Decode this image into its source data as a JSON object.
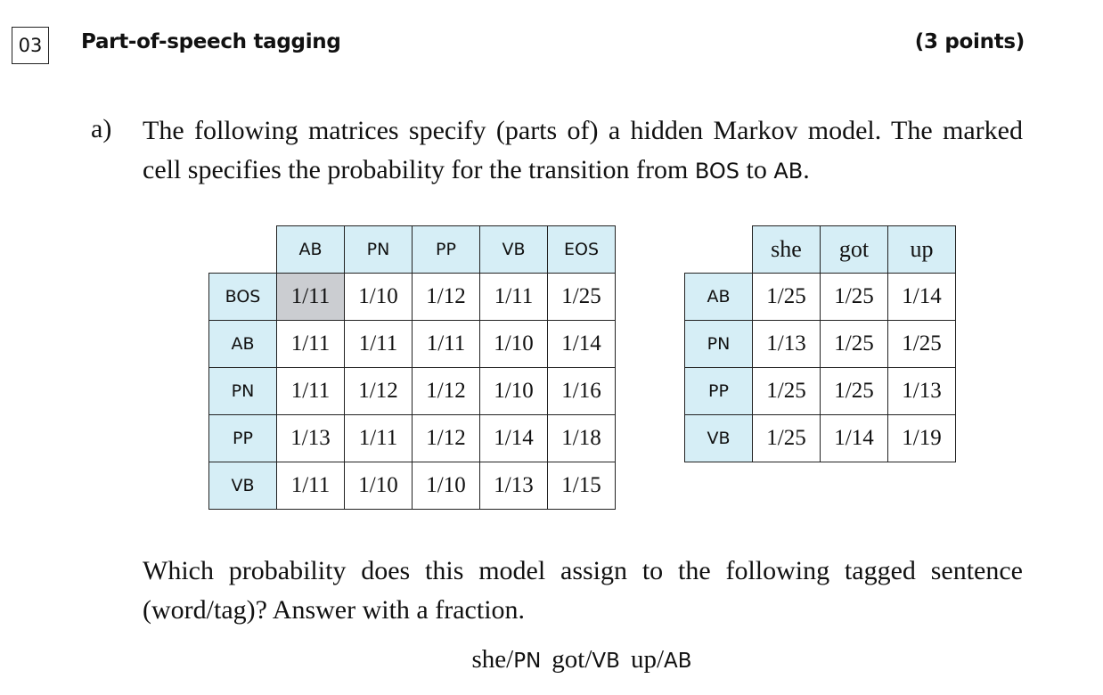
{
  "header": {
    "number": "03",
    "title": "Part-of-speech tagging",
    "points": "(3 points)"
  },
  "part_a": {
    "marker": "a)",
    "intro_1": "The following matrices specify (parts of) a hidden Markov model. The marked cell specifies the probability for the transition from ",
    "intro_code_1": "BOS",
    "intro_2": " to ",
    "intro_code_2": "AB",
    "intro_3": ".",
    "question": "Which probability does this model assign to the following tagged sentence (word/tag)? Answer with a fraction.",
    "sentence": [
      {
        "word": "she",
        "tag": "PN"
      },
      {
        "word": "got",
        "tag": "VB"
      },
      {
        "word": "up",
        "tag": "AB"
      }
    ]
  },
  "transition_matrix": {
    "columns": [
      "AB",
      "PN",
      "PP",
      "VB",
      "EOS"
    ],
    "rows": [
      {
        "label": "BOS",
        "values": [
          "1/11",
          "1/10",
          "1/12",
          "1/11",
          "1/25"
        ]
      },
      {
        "label": "AB",
        "values": [
          "1/11",
          "1/11",
          "1/11",
          "1/10",
          "1/14"
        ]
      },
      {
        "label": "PN",
        "values": [
          "1/11",
          "1/12",
          "1/12",
          "1/10",
          "1/16"
        ]
      },
      {
        "label": "PP",
        "values": [
          "1/13",
          "1/11",
          "1/12",
          "1/14",
          "1/18"
        ]
      },
      {
        "label": "VB",
        "values": [
          "1/11",
          "1/10",
          "1/10",
          "1/13",
          "1/15"
        ]
      }
    ],
    "marked_cell": {
      "row": "BOS",
      "column": "AB"
    },
    "marked_color": "#cbcdd1",
    "header_color": "#d6eef6"
  },
  "emission_matrix": {
    "columns": [
      "she",
      "got",
      "up"
    ],
    "rows": [
      {
        "label": "AB",
        "values": [
          "1/25",
          "1/25",
          "1/14"
        ]
      },
      {
        "label": "PN",
        "values": [
          "1/13",
          "1/25",
          "1/25"
        ]
      },
      {
        "label": "PP",
        "values": [
          "1/25",
          "1/25",
          "1/13"
        ]
      },
      {
        "label": "VB",
        "values": [
          "1/25",
          "1/14",
          "1/19"
        ]
      }
    ]
  }
}
